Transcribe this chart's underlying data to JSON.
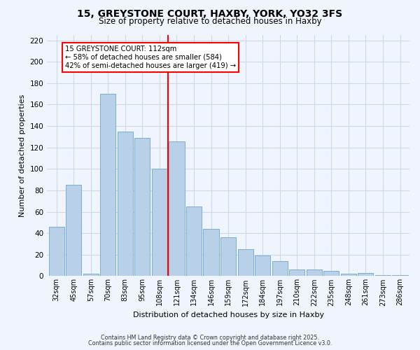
{
  "title": "15, GREYSTONE COURT, HAXBY, YORK, YO32 3FS",
  "subtitle": "Size of property relative to detached houses in Haxby",
  "xlabel": "Distribution of detached houses by size in Haxby",
  "ylabel": "Number of detached properties",
  "bar_labels": [
    "32sqm",
    "45sqm",
    "57sqm",
    "70sqm",
    "83sqm",
    "95sqm",
    "108sqm",
    "121sqm",
    "134sqm",
    "146sqm",
    "159sqm",
    "172sqm",
    "184sqm",
    "197sqm",
    "210sqm",
    "222sqm",
    "235sqm",
    "248sqm",
    "261sqm",
    "273sqm",
    "286sqm"
  ],
  "bar_values": [
    46,
    85,
    2,
    170,
    135,
    129,
    100,
    126,
    65,
    44,
    36,
    25,
    19,
    14,
    6,
    6,
    5,
    2,
    3,
    1,
    1
  ],
  "bar_color": "#b8d0e8",
  "bar_edge_color": "#7aaed4",
  "vline_color": "red",
  "vline_pos": 6.5,
  "annotation_title": "15 GREYSTONE COURT: 112sqm",
  "annotation_line1": "← 58% of detached houses are smaller (584)",
  "annotation_line2": "42% of semi-detached houses are larger (419) →",
  "annotation_box_color": "white",
  "annotation_box_edge": "red",
  "ylim": [
    0,
    225
  ],
  "yticks": [
    0,
    20,
    40,
    60,
    80,
    100,
    120,
    140,
    160,
    180,
    200,
    220
  ],
  "footer1": "Contains HM Land Registry data © Crown copyright and database right 2025.",
  "footer2": "Contains public sector information licensed under the Open Government Licence v3.0.",
  "bg_color": "#f0f4fc",
  "grid_color": "#ccd8ec",
  "title_fontsize": 10,
  "subtitle_fontsize": 8.5
}
